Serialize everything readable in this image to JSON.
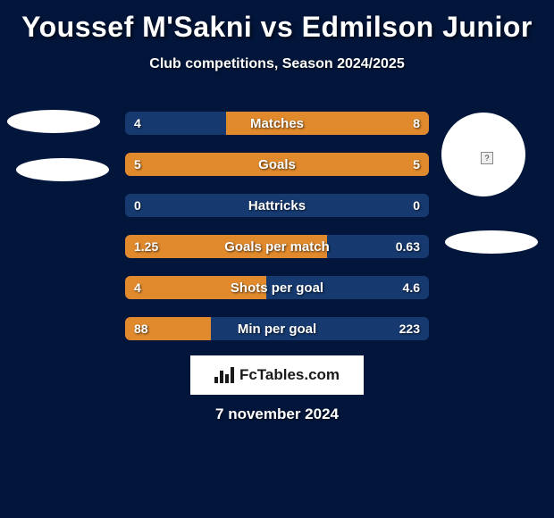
{
  "title": "Youssef M'Sakni vs Edmilson Junior",
  "subtitle": "Club competitions, Season 2024/2025",
  "date": "7 november 2024",
  "badge_text": "FcTables.com",
  "colors": {
    "background": "#02153a",
    "win_fill": "#e08a2d",
    "lose_fill": "#163a70",
    "text": "#ffffff",
    "badge_bg": "#ffffff",
    "badge_text": "#1a1a1a"
  },
  "rows": [
    {
      "label": "Matches",
      "left_val": "4",
      "right_val": "8",
      "left_pct": 33.3,
      "left_win": false,
      "right_win": true
    },
    {
      "label": "Goals",
      "left_val": "5",
      "right_val": "5",
      "left_pct": 50.0,
      "left_win": true,
      "right_win": true
    },
    {
      "label": "Hattricks",
      "left_val": "0",
      "right_val": "0",
      "left_pct": 50.0,
      "left_win": false,
      "right_win": false
    },
    {
      "label": "Goals per match",
      "left_val": "1.25",
      "right_val": "0.63",
      "left_pct": 66.5,
      "left_win": true,
      "right_win": false
    },
    {
      "label": "Shots per goal",
      "left_val": "4",
      "right_val": "4.6",
      "left_pct": 46.5,
      "left_win": true,
      "right_win": false
    },
    {
      "label": "Min per goal",
      "left_val": "88",
      "right_val": "223",
      "left_pct": 28.3,
      "left_win": true,
      "right_win": false
    }
  ]
}
